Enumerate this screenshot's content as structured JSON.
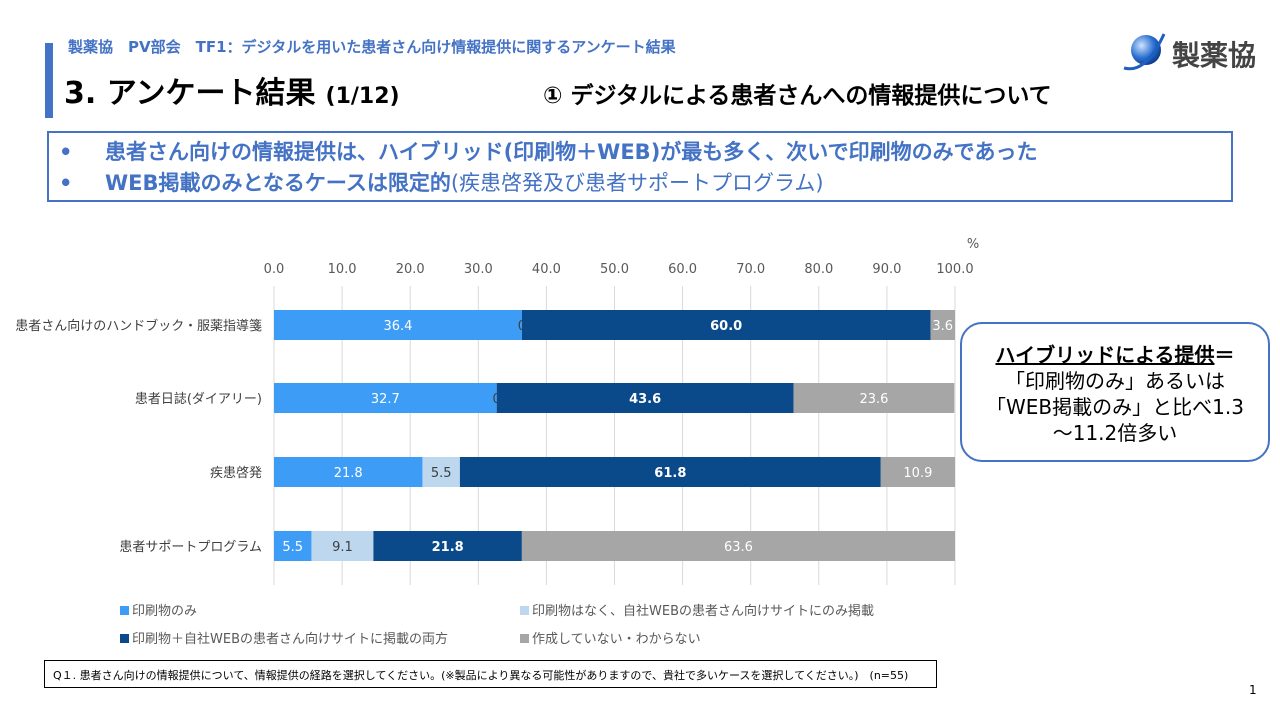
{
  "header": {
    "subtitle": "製薬協　PV部会　TF1：デジタルを用いた患者さん向け情報提供に関するアンケート結果",
    "title": "3. アンケート結果",
    "page_indicator": "(1/12)",
    "section": "① デジタルによる患者さんへの情報提供について",
    "logo_text": "製薬協"
  },
  "summary": {
    "bullet": "•",
    "line1": "患者さん向けの情報提供は、ハイブリッド(印刷物＋WEB)が最も多く、次いで印刷物のみであった",
    "line2_bold": "WEB掲載のみとなるケースは限定的",
    "line2_normal": "(疾患啓発及び患者サポートプログラム)"
  },
  "callout": {
    "heading": "ハイブリッドによる提供",
    "eq": "＝",
    "line2": "「印刷物のみ」あるいは",
    "line3": "「WEB掲載のみ」と比べ1.3",
    "line4": "～11.2倍多い"
  },
  "chart_data": {
    "type": "bar",
    "orientation": "horizontal",
    "stacked": true,
    "unit_label": "%",
    "xlim": [
      0,
      100
    ],
    "x_ticks": [
      "0.0",
      "10.0",
      "20.0",
      "30.0",
      "40.0",
      "50.0",
      "60.0",
      "70.0",
      "80.0",
      "90.0",
      "100.0"
    ],
    "grid": true,
    "legend_placement": "bottom",
    "categories": [
      "患者さん向けのハンドブック・服薬指導箋",
      "患者日誌(ダイアリー)",
      "疾患啓発",
      "患者サポートプログラム"
    ],
    "series": [
      {
        "name": "印刷物のみ",
        "color": "#3d9cf5",
        "label_color": "#ffffff",
        "bold": false,
        "values": [
          36.4,
          32.7,
          21.8,
          5.5
        ]
      },
      {
        "name": "印刷物はなく、自社WEBの患者さん向けサイトにのみ掲載",
        "color": "#bdd7ee",
        "label_color": "#404040",
        "bold": false,
        "values": [
          0,
          0,
          5.5,
          9.1
        ]
      },
      {
        "name": "印刷物＋自社WEBの患者さん向けサイトに掲載の両方",
        "color": "#0a4a8a",
        "label_color": "#ffffff",
        "bold": true,
        "values": [
          60.0,
          43.6,
          61.8,
          21.8
        ]
      },
      {
        "name": "作成していない・わからない",
        "color": "#a6a6a6",
        "label_color": "#ffffff",
        "bold": false,
        "values": [
          3.6,
          23.6,
          10.9,
          63.6
        ]
      }
    ],
    "data_labels": [
      [
        "36.4",
        "0",
        "60.0",
        "3.6"
      ],
      [
        "32.7",
        "0",
        "43.6",
        "23.6"
      ],
      [
        "21.8",
        "5.5",
        "61.8",
        "10.9"
      ],
      [
        "5.5",
        "9.1",
        "21.8",
        "63.6"
      ]
    ]
  },
  "footnote": "Q１. 患者さん向けの情報提供について、情報提供の経路を選択してください。(※製品により異なる可能性がありますので、貴社で多いケースを選択してください。)　(n=55)",
  "page_number": "1"
}
